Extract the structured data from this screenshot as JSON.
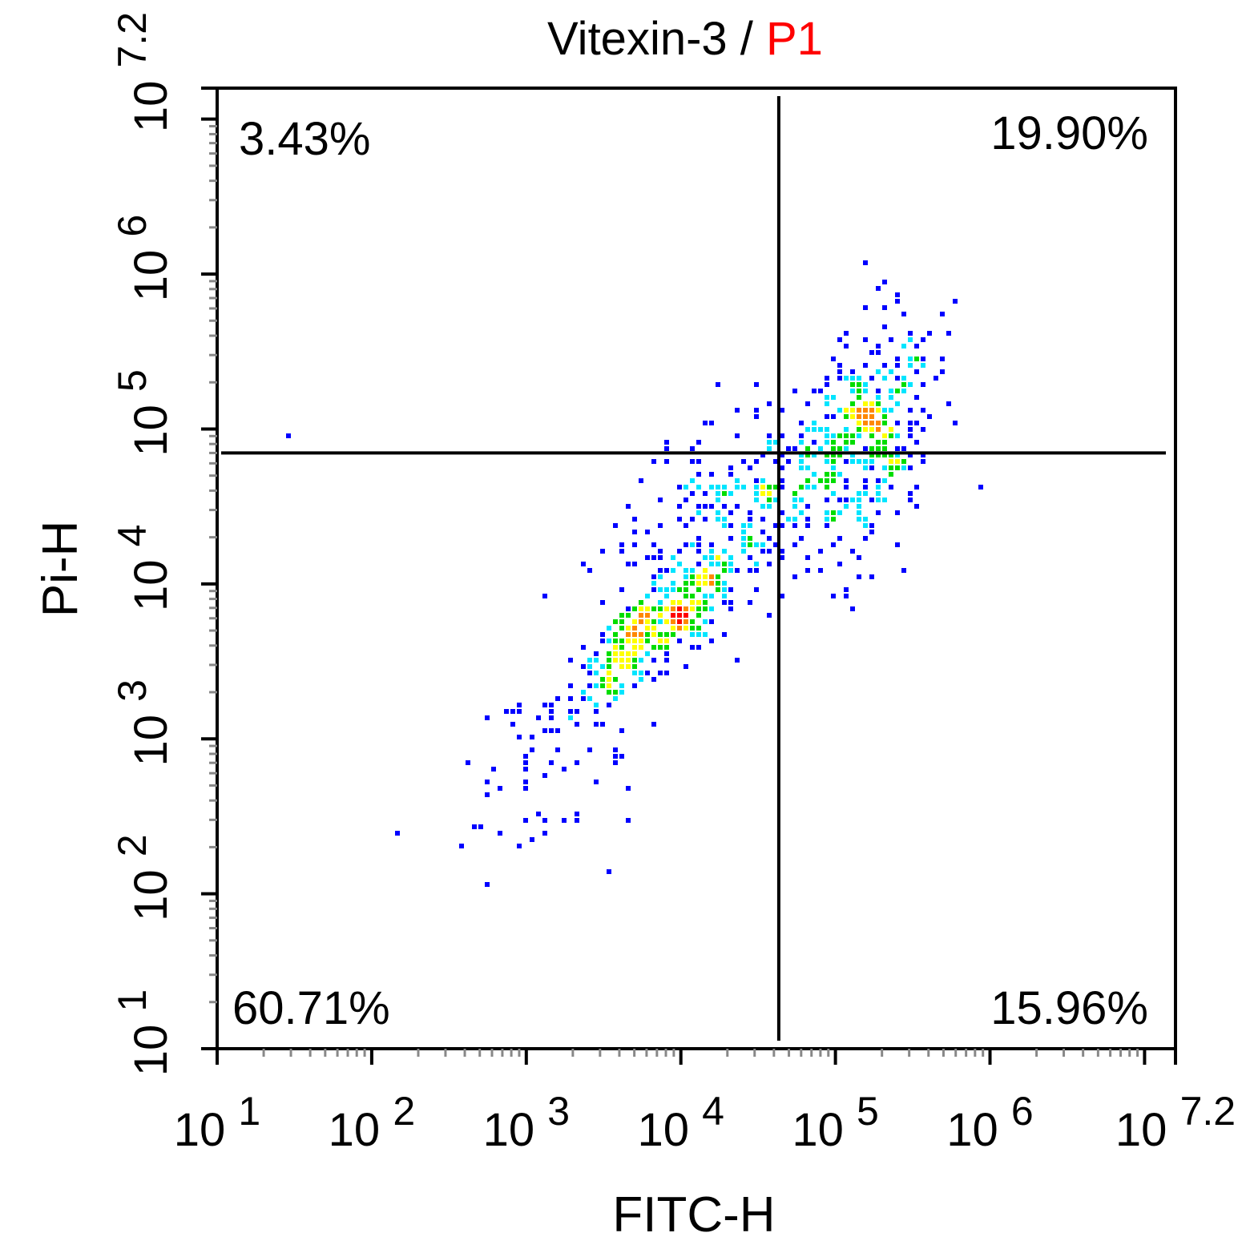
{
  "chart_data": {
    "type": "scatter",
    "title_parts": [
      {
        "text": "Vitexin-3 / ",
        "color": "#000000"
      },
      {
        "text": "P1",
        "color": "#ff0000"
      }
    ],
    "xlabel": "FITC-H",
    "ylabel": "Pi-H",
    "x_scale": "log",
    "y_scale": "log",
    "xlim": [
      10,
      15848932
    ],
    "ylim": [
      10,
      15848932
    ],
    "x_tick_labels": [
      {
        "base": "10",
        "exp": "1",
        "value": 10
      },
      {
        "base": "10",
        "exp": "2",
        "value": 100
      },
      {
        "base": "10",
        "exp": "3",
        "value": 1000
      },
      {
        "base": "10",
        "exp": "4",
        "value": 10000
      },
      {
        "base": "10",
        "exp": "5",
        "value": 100000
      },
      {
        "base": "10",
        "exp": "6",
        "value": 1000000
      },
      {
        "base": "10",
        "exp": "7.2",
        "value": 15848932
      }
    ],
    "y_tick_labels": [
      {
        "base": "10",
        "exp": "1",
        "value": 10
      },
      {
        "base": "10",
        "exp": "2",
        "value": 100
      },
      {
        "base": "10",
        "exp": "3",
        "value": 1000
      },
      {
        "base": "10",
        "exp": "4",
        "value": 10000
      },
      {
        "base": "10",
        "exp": "5",
        "value": 100000
      },
      {
        "base": "10",
        "exp": "6",
        "value": 1000000
      },
      {
        "base": "10",
        "exp": "7.2",
        "value": 15848932
      }
    ],
    "gate_x": 43000,
    "gate_y": 70000,
    "quadrants": [
      {
        "id": "upper-left",
        "label": "3.43%",
        "position": "top-left"
      },
      {
        "id": "upper-right",
        "label": "19.90%",
        "position": "top-right"
      },
      {
        "id": "lower-left",
        "label": "60.71%",
        "position": "bottom-left"
      },
      {
        "id": "lower-right",
        "label": "15.96%",
        "position": "bottom-right"
      }
    ],
    "density_colors": [
      "#0000ff",
      "#00e5ff",
      "#00dd00",
      "#ffff00",
      "#ff8800",
      "#ff0000"
    ],
    "populations": [
      {
        "name": "dense-cluster",
        "center": [
          6500,
          5000
        ],
        "n": 260,
        "sx": 0.3,
        "sy": 0.28,
        "rho": 0.85,
        "seed": 11
      },
      {
        "name": "upper-cluster",
        "center": [
          160000,
          90000
        ],
        "n": 300,
        "sx": 0.22,
        "sy": 0.38,
        "rho": 0.3,
        "seed": 23
      },
      {
        "name": "mid-diffuse",
        "center": [
          22000,
          30000
        ],
        "n": 300,
        "sx": 0.4,
        "sy": 0.42,
        "rho": 0.55,
        "seed": 37
      },
      {
        "name": "low-tail",
        "center": [
          1300,
          600
        ],
        "n": 60,
        "sx": 0.35,
        "sy": 0.4,
        "rho": 0.6,
        "seed": 51
      }
    ],
    "outliers": [
      [
        30,
        87000
      ],
      [
        140,
        250
      ],
      [
        850000,
        43000
      ],
      [
        600000,
        640000
      ],
      [
        400,
        700
      ],
      [
        3500,
        140
      ]
    ],
    "grid": false,
    "legend": "none"
  }
}
